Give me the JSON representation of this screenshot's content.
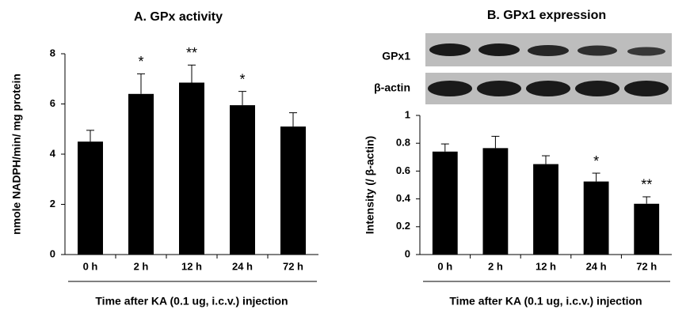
{
  "chart_data": [
    {
      "type": "bar",
      "title": "A. GPx activity",
      "y_label": "nmole NADPH/min/ mg protein",
      "x_label": "Time after KA (0.1 ug, i.c.v.) injection",
      "categories": [
        "0 h",
        "2 h",
        "12 h",
        "24 h",
        "72 h"
      ],
      "values": [
        4.5,
        6.4,
        6.85,
        5.95,
        5.1
      ],
      "errors": [
        0.45,
        0.8,
        0.7,
        0.55,
        0.55
      ],
      "annotations": [
        null,
        "*",
        "**",
        "*",
        null
      ],
      "color": "#000000",
      "ylim": [
        0,
        8
      ],
      "yticks": [
        0,
        2,
        4,
        6,
        8
      ]
    },
    {
      "type": "bar",
      "title": "B. GPx1 expression",
      "y_label": "Intensity (/ β-actin)",
      "x_label": "Time after KA (0.1 ug, i.c.v.) injection",
      "blot_labels": [
        "GPx1",
        "β-actin"
      ],
      "categories": [
        "0 h",
        "2 h",
        "12 h",
        "24 h",
        "72 h"
      ],
      "values": [
        0.74,
        0.765,
        0.65,
        0.525,
        0.365
      ],
      "errors": [
        0.055,
        0.085,
        0.06,
        0.06,
        0.05
      ],
      "annotations": [
        null,
        null,
        null,
        "*",
        "**"
      ],
      "color": "#000000",
      "ylim": [
        0,
        1
      ],
      "yticks": [
        0,
        0.2,
        0.4,
        0.6,
        0.8,
        1
      ]
    }
  ]
}
